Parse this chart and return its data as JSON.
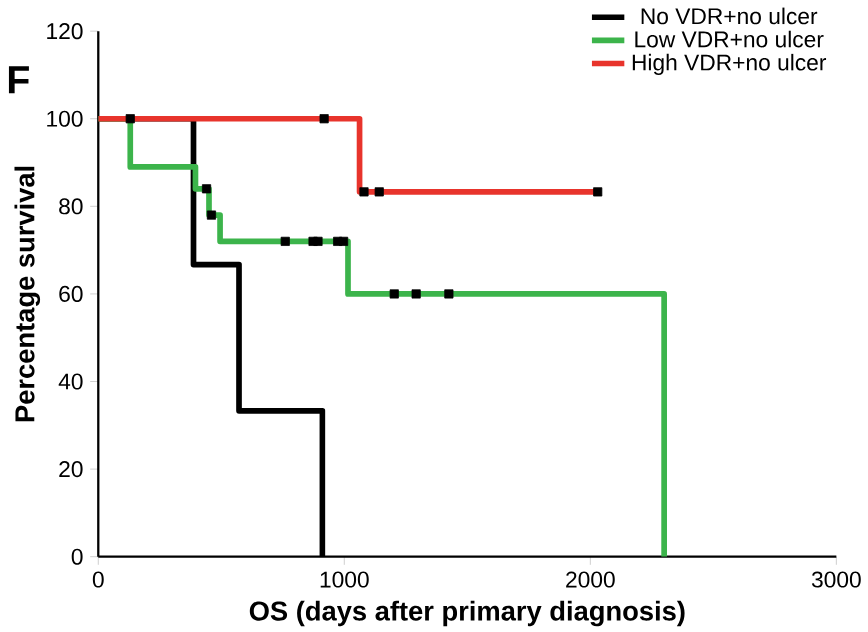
{
  "chart_data": {
    "type": "step",
    "xlabel": "OS (days after primary diagnosis)",
    "ylabel": "Percentage survival",
    "annotations": [
      "F"
    ],
    "xlim": [
      0,
      3000
    ],
    "xticks": [
      0,
      1000,
      2000,
      3000
    ],
    "ylim": [
      0,
      120
    ],
    "yticks": [
      0,
      20,
      40,
      60,
      80,
      100,
      120
    ],
    "grid": false,
    "legend": "top right",
    "series": [
      {
        "name": "No VDR+no ulcer",
        "color": "#000000",
        "x": [
          0,
          387,
          572,
          911
        ],
        "values": [
          100,
          66.7,
          33.3,
          0
        ]
      },
      {
        "name": "Low VDR+no ulcer",
        "color": "#3cb44b",
        "x": [
          0,
          130,
          395,
          450,
          495,
          1015,
          2300
        ],
        "values": [
          100,
          89,
          84,
          78,
          72,
          60,
          0
        ]
      },
      {
        "name": "High VDR+no ulcer",
        "color": "#e8342c",
        "x": [
          0,
          1062,
          2030
        ],
        "values": [
          100,
          83.3,
          83.3
        ]
      },
      {
        "type": "scatter",
        "marker": "square",
        "color": "#000000",
        "x": [
          440,
          460,
          760,
          873,
          893,
          973,
          997,
          1203,
          1292,
          1425
        ],
        "values": [
          84,
          78,
          72,
          72,
          72,
          72,
          72,
          60,
          60,
          60
        ]
      },
      {
        "type": "scatter",
        "marker": "square",
        "color": "#000000",
        "x": [
          130,
          918,
          1080,
          1142,
          2030
        ],
        "values": [
          100,
          100,
          83.3,
          83.3,
          83.3
        ]
      }
    ]
  }
}
